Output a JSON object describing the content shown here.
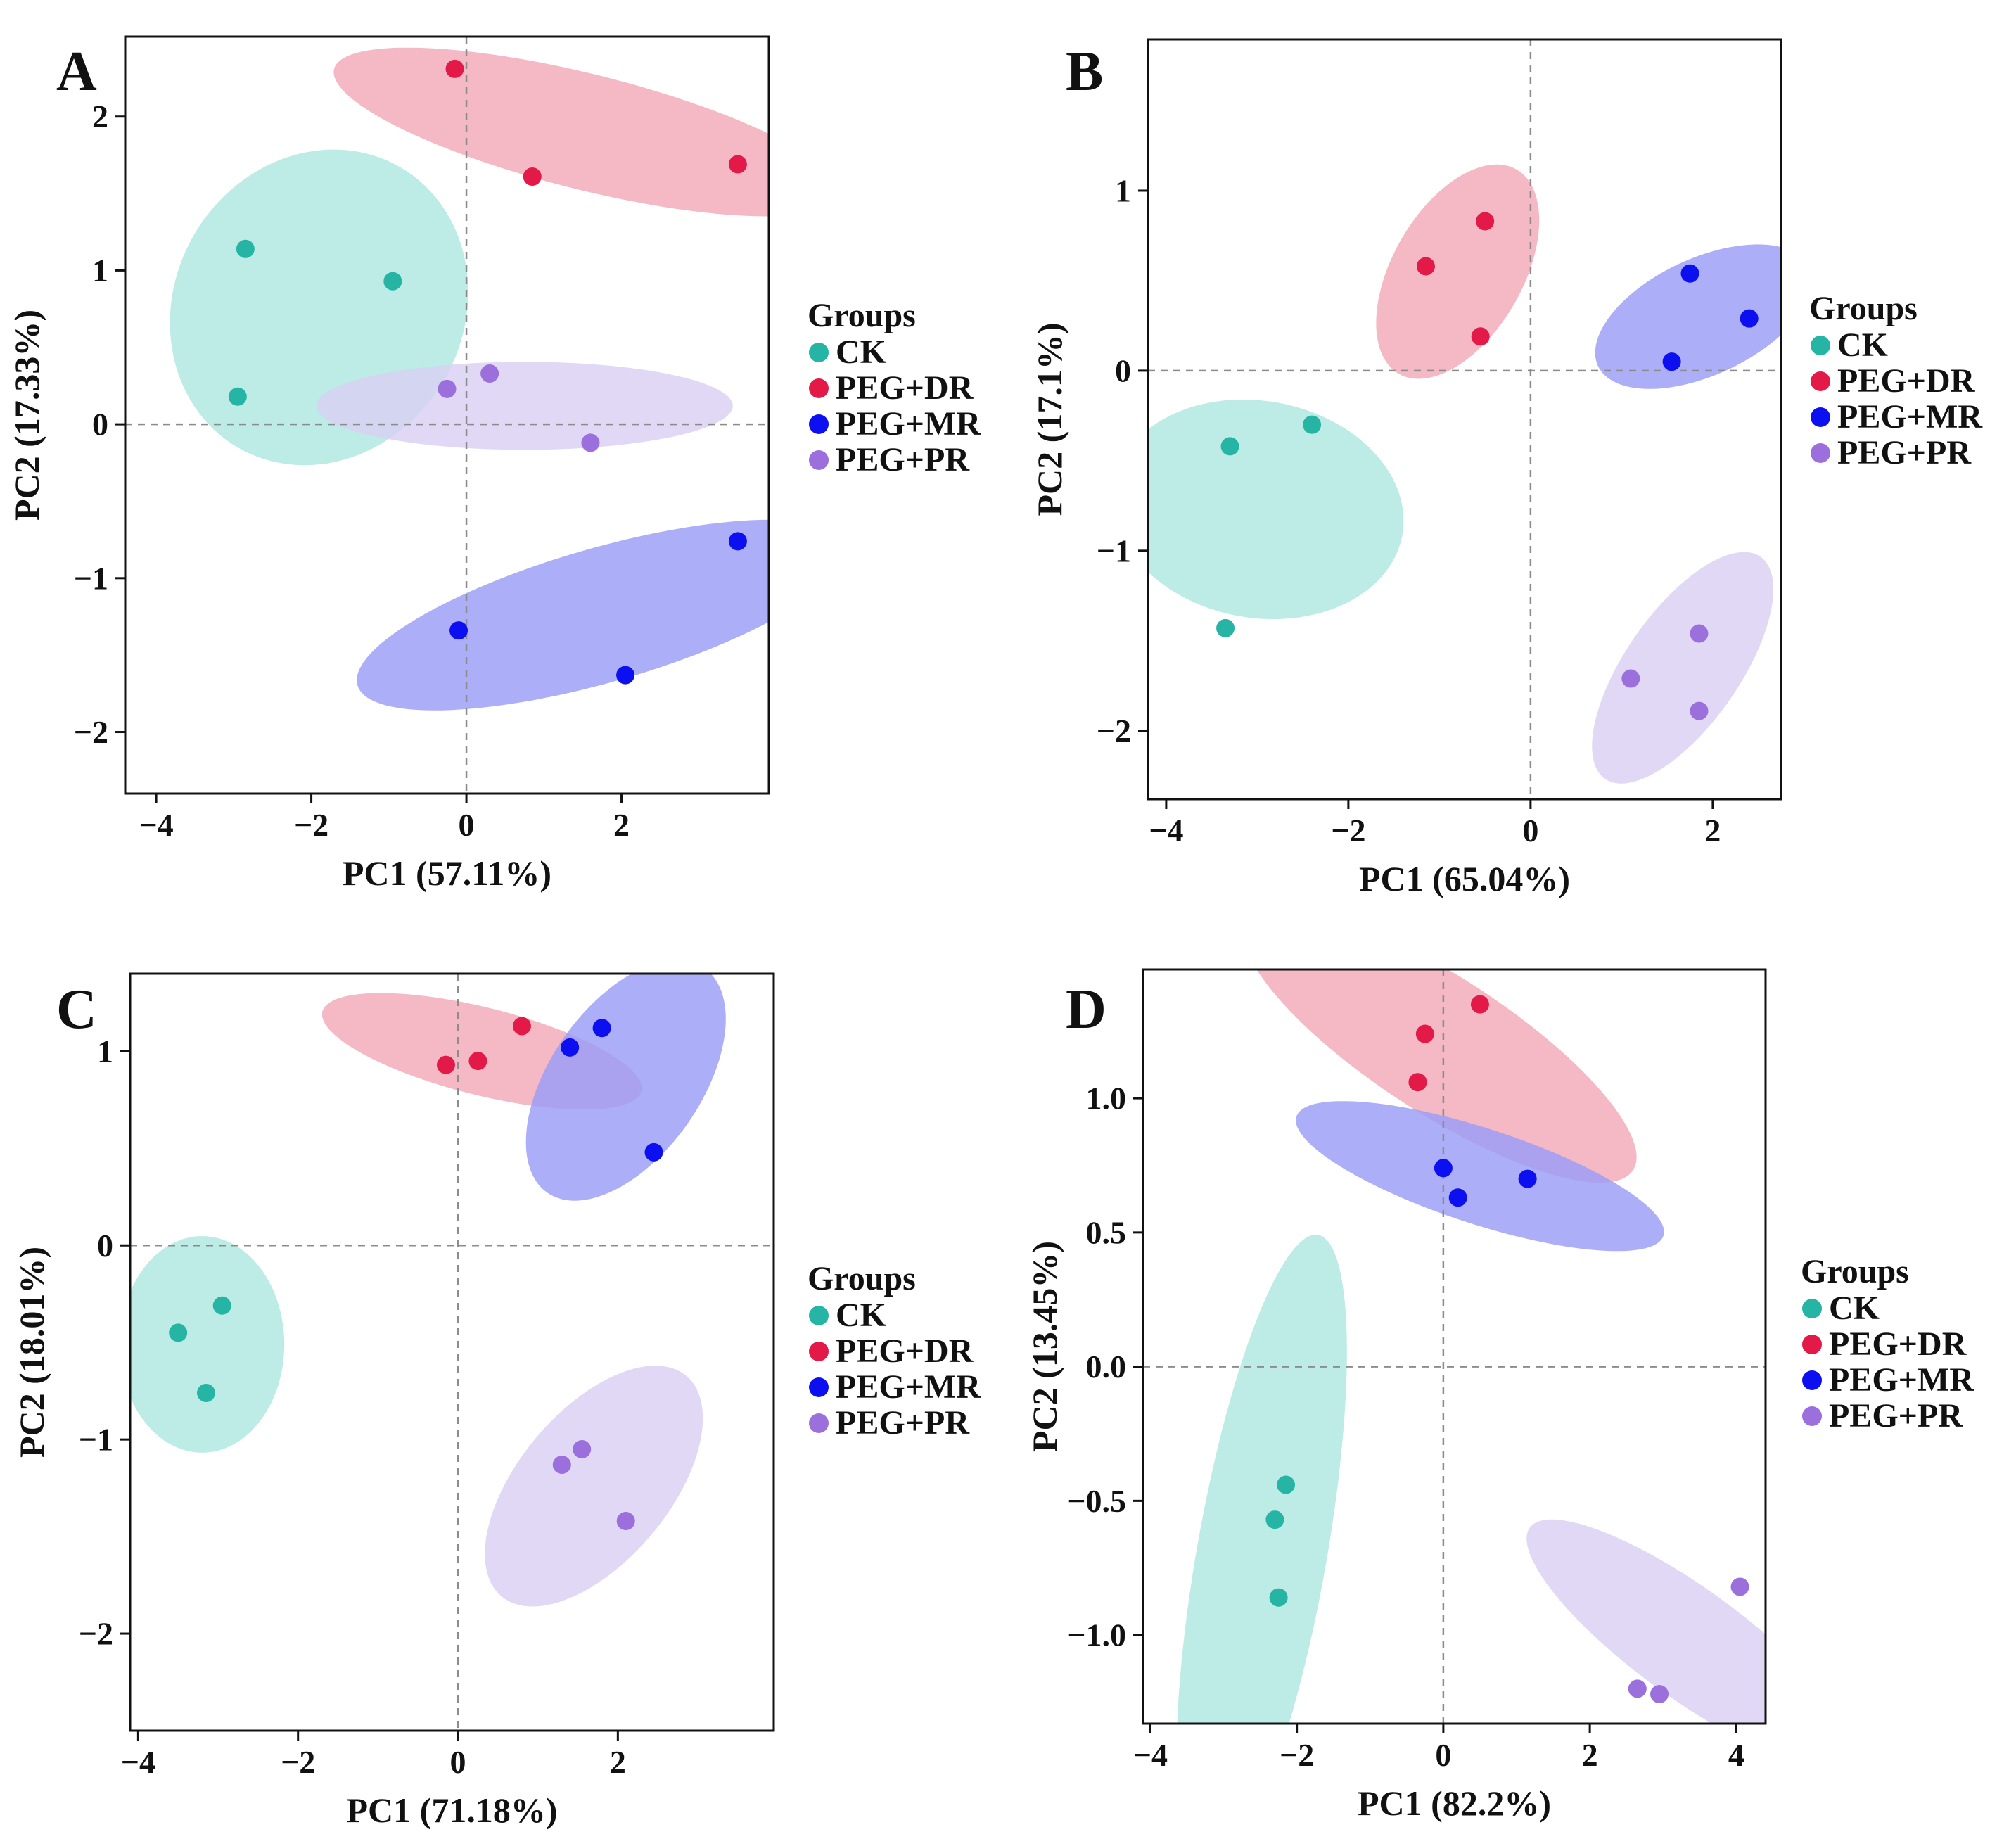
{
  "colors": {
    "CK": "#26b5a5",
    "PEG+DR": "#e31a48",
    "PEG+MR": "#0c0ff0",
    "PEG+PR": "#9b6fdc",
    "CK_fill": "#aee6df",
    "PEG+DR_fill": "#f2a9b8",
    "PEG+MR_fill": "#9a9ef7",
    "PEG+PR_fill": "#d9d0f2"
  },
  "chart_data": [
    {
      "panel": "A",
      "type": "scatter",
      "xlabel": "PC1 (57.11%)",
      "ylabel": "PC2 (17.33%)",
      "xlim": [
        -4.4,
        3.9
      ],
      "ylim": [
        -2.4,
        2.52
      ],
      "xticks": [
        {
          "v": -4,
          "label": "−4"
        },
        {
          "v": -2,
          "label": "−2"
        },
        {
          "v": 0,
          "label": "0"
        },
        {
          "v": 2,
          "label": "2"
        }
      ],
      "yticks": [
        {
          "v": -2,
          "label": "−2"
        },
        {
          "v": -1,
          "label": "−1"
        },
        {
          "v": 0,
          "label": "0"
        },
        {
          "v": 1,
          "label": "1"
        },
        {
          "v": 2,
          "label": "2"
        }
      ],
      "legend": {
        "title": "Groups",
        "position": "right",
        "items": [
          "CK",
          "PEG+DR",
          "PEG+MR",
          "PEG+PR"
        ]
      },
      "series": [
        {
          "name": "CK",
          "points": [
            [
              -2.85,
              1.14
            ],
            [
              -0.95,
              0.93
            ],
            [
              -2.95,
              0.18
            ]
          ],
          "ellipse": {
            "cx": -1.9,
            "cy": 0.76,
            "rx": 1.4,
            "ry": 1.25,
            "angle": 60
          }
        },
        {
          "name": "PEG+DR",
          "points": [
            [
              -0.15,
              2.31
            ],
            [
              0.85,
              1.61
            ],
            [
              3.5,
              1.69
            ]
          ],
          "ellipse": {
            "cx": 1.55,
            "cy": 1.9,
            "rx": 2.25,
            "ry": 0.5,
            "angle": -14
          }
        },
        {
          "name": "PEG+MR",
          "points": [
            [
              3.5,
              -0.76
            ],
            [
              -0.1,
              -1.34
            ],
            [
              2.05,
              -1.63
            ]
          ],
          "ellipse": {
            "cx": 1.75,
            "cy": -1.24,
            "rx": 2.2,
            "ry": 0.58,
            "angle": 16
          }
        },
        {
          "name": "PEG+PR",
          "points": [
            [
              -0.25,
              0.23
            ],
            [
              0.3,
              0.33
            ],
            [
              1.6,
              -0.12
            ]
          ],
          "ellipse": {
            "cx": 0.75,
            "cy": 0.12,
            "rx": 1.8,
            "ry": 0.38,
            "angle": 0
          }
        }
      ]
    },
    {
      "panel": "B",
      "type": "scatter",
      "xlabel": "PC1 (65.04%)",
      "ylabel": "PC2 (17.1%)",
      "xlim": [
        -4.2,
        2.75
      ],
      "ylim": [
        -2.38,
        1.84
      ],
      "xticks": [
        {
          "v": -4,
          "label": "−4"
        },
        {
          "v": -2,
          "label": "−2"
        },
        {
          "v": 0,
          "label": "0"
        },
        {
          "v": 2,
          "label": "2"
        }
      ],
      "yticks": [
        {
          "v": -2,
          "label": "−2"
        },
        {
          "v": -1,
          "label": "−1"
        },
        {
          "v": 0,
          "label": "0"
        },
        {
          "v": 1,
          "label": "1"
        }
      ],
      "legend": {
        "title": "Groups",
        "position": "right",
        "items": [
          "CK",
          "PEG+DR",
          "PEG+MR",
          "PEG+PR"
        ]
      },
      "series": [
        {
          "name": "CK",
          "points": [
            [
              -2.4,
              -0.3
            ],
            [
              -3.3,
              -0.42
            ],
            [
              -3.35,
              -1.43
            ]
          ],
          "ellipse": {
            "cx": -2.99,
            "cy": -0.77,
            "rx": 0.8,
            "ry": 1.08,
            "angle": 80
          }
        },
        {
          "name": "PEG+DR",
          "points": [
            [
              -0.5,
              0.83
            ],
            [
              -1.15,
              0.58
            ],
            [
              -0.55,
              0.19
            ]
          ],
          "ellipse": {
            "cx": -0.8,
            "cy": 0.55,
            "rx": 0.87,
            "ry": 0.48,
            "angle": 60
          }
        },
        {
          "name": "PEG+MR",
          "points": [
            [
              1.75,
              0.54
            ],
            [
              2.4,
              0.29
            ],
            [
              1.55,
              0.05
            ]
          ],
          "ellipse": {
            "cx": 1.9,
            "cy": 0.3,
            "rx": 0.86,
            "ry": 0.43,
            "angle": 25
          }
        },
        {
          "name": "PEG+PR",
          "points": [
            [
              1.85,
              -1.46
            ],
            [
              1.1,
              -1.71
            ],
            [
              1.85,
              -1.89
            ]
          ],
          "ellipse": {
            "cx": 1.67,
            "cy": -1.65,
            "rx": 1.0,
            "ry": 0.42,
            "angle": 55
          }
        }
      ]
    },
    {
      "panel": "C",
      "type": "scatter",
      "xlabel": "PC1 (71.18%)",
      "ylabel": "PC2 (18.01%)",
      "xlim": [
        -4.1,
        3.95
      ],
      "ylim": [
        -2.5,
        1.4
      ],
      "xticks": [
        {
          "v": -4,
          "label": "−4"
        },
        {
          "v": -2,
          "label": "−2"
        },
        {
          "v": 0,
          "label": "0"
        },
        {
          "v": 2,
          "label": "2"
        }
      ],
      "yticks": [
        {
          "v": -2,
          "label": "−2"
        },
        {
          "v": -1,
          "label": "−1"
        },
        {
          "v": 0,
          "label": "0"
        },
        {
          "v": 1,
          "label": "1"
        }
      ],
      "legend": {
        "title": "Groups",
        "position": "right",
        "items": [
          "CK",
          "PEG+DR",
          "PEG+MR",
          "PEG+PR"
        ]
      },
      "series": [
        {
          "name": "CK",
          "points": [
            [
              -2.95,
              -0.31
            ],
            [
              -3.5,
              -0.45
            ],
            [
              -3.15,
              -0.76
            ]
          ],
          "ellipse": {
            "cx": -3.2,
            "cy": -0.51,
            "rx": 0.79,
            "ry": 0.6,
            "angle": 90
          }
        },
        {
          "name": "PEG+DR",
          "points": [
            [
              0.8,
              1.13
            ],
            [
              -0.15,
              0.93
            ],
            [
              0.25,
              0.95
            ]
          ],
          "ellipse": {
            "cx": 0.3,
            "cy": 1.0,
            "rx": 1.2,
            "ry": 0.32,
            "angle": -14
          }
        },
        {
          "name": "PEG+MR",
          "points": [
            [
              1.8,
              1.12
            ],
            [
              1.4,
              1.02
            ],
            [
              2.45,
              0.48
            ]
          ],
          "ellipse": {
            "cx": 2.1,
            "cy": 0.85,
            "rx": 1.0,
            "ry": 0.55,
            "angle": 55
          }
        },
        {
          "name": "PEG+PR",
          "points": [
            [
              1.55,
              -1.05
            ],
            [
              1.3,
              -1.13
            ],
            [
              2.1,
              -1.42
            ]
          ],
          "ellipse": {
            "cx": 1.7,
            "cy": -1.24,
            "rx": 1.05,
            "ry": 0.55,
            "angle": 50
          }
        }
      ]
    },
    {
      "panel": "D",
      "type": "scatter",
      "xlabel": "PC1 (82.2%)",
      "ylabel": "PC2 (13.45%)",
      "xlim": [
        -4.1,
        4.4
      ],
      "ylim": [
        -1.33,
        1.48
      ],
      "xticks": [
        {
          "v": -4,
          "label": "−4"
        },
        {
          "v": -2,
          "label": "−2"
        },
        {
          "v": 0,
          "label": "0"
        },
        {
          "v": 2,
          "label": "2"
        },
        {
          "v": 4,
          "label": "4"
        }
      ],
      "yticks": [
        {
          "v": -1.0,
          "label": "−1.0"
        },
        {
          "v": -0.5,
          "label": "−0.5"
        },
        {
          "v": 0.0,
          "label": "0.0"
        },
        {
          "v": 0.5,
          "label": "0.5"
        },
        {
          "v": 1.0,
          "label": "1.0"
        }
      ],
      "legend": {
        "title": "Groups",
        "position": "right",
        "items": [
          "CK",
          "PEG+DR",
          "PEG+MR",
          "PEG+PR"
        ]
      },
      "series": [
        {
          "name": "CK",
          "points": [
            [
              -2.15,
              -0.44
            ],
            [
              -2.3,
              -0.57
            ],
            [
              -2.25,
              -0.86
            ]
          ],
          "ellipse": {
            "cx": -2.48,
            "cy": -0.7,
            "rx": 1.9,
            "ry": 0.38,
            "angle": 80
          }
        },
        {
          "name": "PEG+DR",
          "points": [
            [
              0.5,
              1.35
            ],
            [
              -0.25,
              1.24
            ],
            [
              -0.35,
              1.06
            ]
          ],
          "ellipse": {
            "cx": -0.05,
            "cy": 1.2,
            "rx": 1.35,
            "ry": 0.4,
            "angle": -33
          }
        },
        {
          "name": "PEG+MR",
          "points": [
            [
              0.0,
              0.74
            ],
            [
              1.15,
              0.7
            ],
            [
              0.2,
              0.63
            ]
          ],
          "ellipse": {
            "cx": 0.5,
            "cy": 0.71,
            "rx": 1.13,
            "ry": 0.28,
            "angle": -18
          }
        },
        {
          "name": "PEG+PR",
          "points": [
            [
              4.05,
              -0.82
            ],
            [
              2.65,
              -1.2
            ],
            [
              2.95,
              -1.22
            ]
          ],
          "ellipse": {
            "cx": 3.35,
            "cy": -1.03,
            "rx": 1.15,
            "ry": 0.32,
            "angle": -36
          }
        }
      ]
    }
  ]
}
